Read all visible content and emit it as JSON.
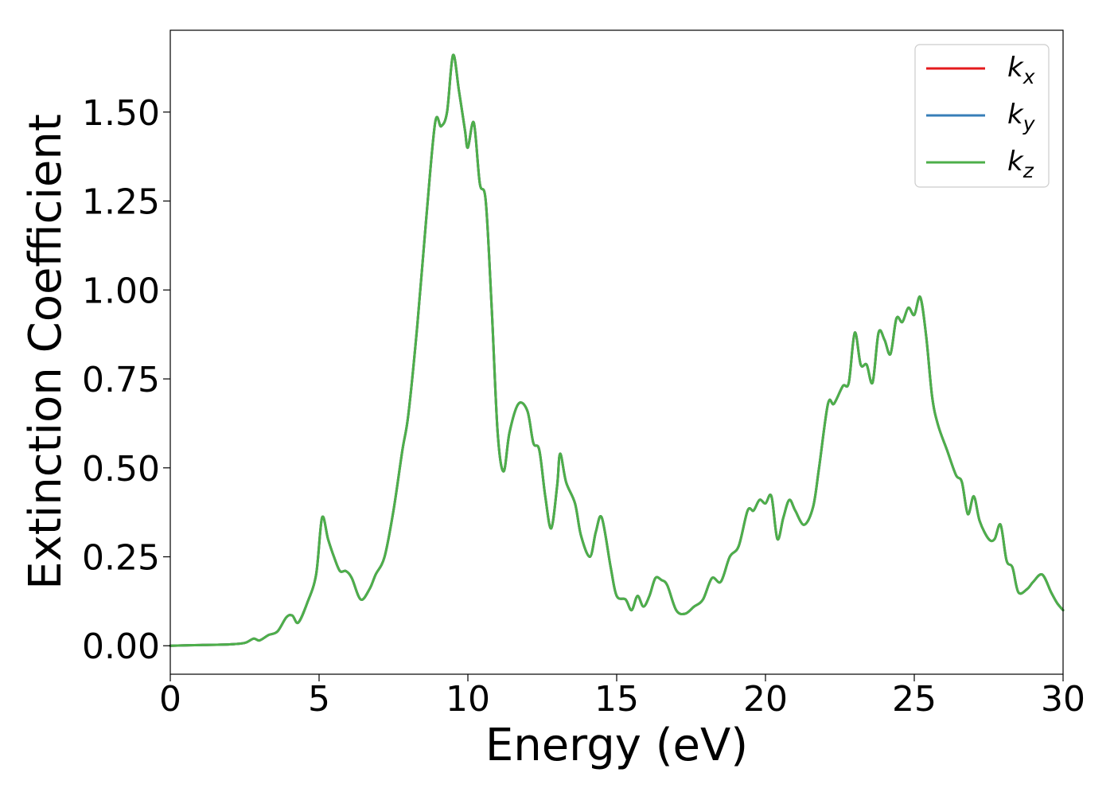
{
  "chart_data": {
    "type": "line",
    "xlabel": "Energy (eV)",
    "ylabel": "Extinction Coefficient",
    "xlim": [
      0,
      30
    ],
    "ylim": [
      -0.08,
      1.73
    ],
    "xticks": [
      0,
      5,
      10,
      15,
      20,
      25,
      30
    ],
    "xtick_labels": [
      "0",
      "5",
      "10",
      "15",
      "20",
      "25",
      "30"
    ],
    "yticks": [
      0,
      0.25,
      0.5,
      0.75,
      1.0,
      1.25,
      1.5
    ],
    "ytick_labels": [
      "0.00",
      "0.25",
      "0.50",
      "0.75",
      "1.00",
      "1.25",
      "1.50"
    ],
    "grid": false,
    "legend_position": "top-right",
    "x": [
      0,
      1,
      2,
      2.5,
      2.8,
      3.0,
      3.3,
      3.6,
      3.9,
      4.1,
      4.3,
      4.6,
      4.9,
      5.1,
      5.3,
      5.5,
      5.7,
      5.9,
      6.1,
      6.4,
      6.7,
      6.9,
      7.2,
      7.5,
      7.8,
      8.0,
      8.3,
      8.6,
      8.9,
      9.1,
      9.3,
      9.5,
      9.7,
      9.9,
      10.0,
      10.2,
      10.4,
      10.6,
      10.8,
      11.0,
      11.2,
      11.4,
      11.7,
      12.0,
      12.2,
      12.4,
      12.6,
      12.8,
      13.0,
      13.1,
      13.3,
      13.6,
      13.8,
      14.1,
      14.3,
      14.5,
      14.8,
      15.0,
      15.3,
      15.5,
      15.7,
      15.9,
      16.1,
      16.3,
      16.5,
      16.7,
      17.0,
      17.3,
      17.6,
      17.9,
      18.2,
      18.5,
      18.8,
      19.1,
      19.4,
      19.6,
      19.8,
      20.0,
      20.2,
      20.4,
      20.6,
      20.8,
      21.0,
      21.3,
      21.6,
      21.8,
      22.1,
      22.3,
      22.6,
      22.8,
      23.0,
      23.2,
      23.4,
      23.6,
      23.8,
      24.0,
      24.2,
      24.4,
      24.6,
      24.8,
      25.0,
      25.2,
      25.4,
      25.6,
      25.8,
      26.1,
      26.4,
      26.6,
      26.8,
      27.0,
      27.2,
      27.5,
      27.7,
      27.9,
      28.1,
      28.3,
      28.5,
      28.8,
      29.0,
      29.3,
      29.6,
      29.8,
      30.0
    ],
    "series": [
      {
        "name": "k_x",
        "color": "#e41a1c",
        "y": [
          0.0,
          0.002,
          0.004,
          0.008,
          0.02,
          0.015,
          0.03,
          0.04,
          0.08,
          0.085,
          0.065,
          0.12,
          0.2,
          0.36,
          0.3,
          0.25,
          0.21,
          0.21,
          0.19,
          0.13,
          0.16,
          0.2,
          0.25,
          0.38,
          0.55,
          0.65,
          0.9,
          1.2,
          1.47,
          1.46,
          1.5,
          1.66,
          1.56,
          1.45,
          1.4,
          1.47,
          1.3,
          1.25,
          0.95,
          0.6,
          0.49,
          0.6,
          0.68,
          0.66,
          0.57,
          0.55,
          0.42,
          0.33,
          0.45,
          0.54,
          0.46,
          0.4,
          0.31,
          0.25,
          0.32,
          0.36,
          0.22,
          0.14,
          0.13,
          0.1,
          0.14,
          0.11,
          0.14,
          0.19,
          0.185,
          0.17,
          0.1,
          0.09,
          0.11,
          0.13,
          0.19,
          0.18,
          0.25,
          0.28,
          0.38,
          0.38,
          0.41,
          0.4,
          0.42,
          0.3,
          0.36,
          0.41,
          0.38,
          0.34,
          0.39,
          0.5,
          0.68,
          0.68,
          0.73,
          0.74,
          0.88,
          0.79,
          0.79,
          0.74,
          0.88,
          0.86,
          0.82,
          0.92,
          0.91,
          0.95,
          0.93,
          0.98,
          0.87,
          0.7,
          0.62,
          0.55,
          0.48,
          0.46,
          0.37,
          0.42,
          0.35,
          0.3,
          0.3,
          0.34,
          0.24,
          0.22,
          0.15,
          0.16,
          0.18,
          0.2,
          0.15,
          0.12,
          0.1
        ]
      },
      {
        "name": "k_y",
        "color": "#377eb8",
        "y": [
          0.0,
          0.002,
          0.004,
          0.008,
          0.02,
          0.015,
          0.03,
          0.04,
          0.08,
          0.085,
          0.065,
          0.12,
          0.2,
          0.36,
          0.3,
          0.25,
          0.21,
          0.21,
          0.19,
          0.13,
          0.16,
          0.2,
          0.25,
          0.38,
          0.55,
          0.65,
          0.9,
          1.2,
          1.47,
          1.46,
          1.5,
          1.66,
          1.56,
          1.45,
          1.4,
          1.47,
          1.3,
          1.25,
          0.95,
          0.6,
          0.49,
          0.6,
          0.68,
          0.66,
          0.57,
          0.55,
          0.42,
          0.33,
          0.45,
          0.54,
          0.46,
          0.4,
          0.31,
          0.25,
          0.32,
          0.36,
          0.22,
          0.14,
          0.13,
          0.1,
          0.14,
          0.11,
          0.14,
          0.19,
          0.185,
          0.17,
          0.1,
          0.09,
          0.11,
          0.13,
          0.19,
          0.18,
          0.25,
          0.28,
          0.38,
          0.38,
          0.41,
          0.4,
          0.42,
          0.3,
          0.36,
          0.41,
          0.38,
          0.34,
          0.39,
          0.5,
          0.68,
          0.68,
          0.73,
          0.74,
          0.88,
          0.79,
          0.79,
          0.74,
          0.88,
          0.86,
          0.82,
          0.92,
          0.91,
          0.95,
          0.93,
          0.98,
          0.87,
          0.7,
          0.62,
          0.55,
          0.48,
          0.46,
          0.37,
          0.42,
          0.35,
          0.3,
          0.3,
          0.34,
          0.24,
          0.22,
          0.15,
          0.16,
          0.18,
          0.2,
          0.15,
          0.12,
          0.1
        ]
      },
      {
        "name": "k_z",
        "color": "#4daf4a",
        "y": [
          0.0,
          0.002,
          0.004,
          0.008,
          0.02,
          0.015,
          0.03,
          0.04,
          0.08,
          0.085,
          0.065,
          0.12,
          0.2,
          0.36,
          0.3,
          0.25,
          0.21,
          0.21,
          0.19,
          0.13,
          0.16,
          0.2,
          0.25,
          0.38,
          0.55,
          0.65,
          0.9,
          1.2,
          1.47,
          1.46,
          1.5,
          1.66,
          1.56,
          1.45,
          1.4,
          1.47,
          1.3,
          1.25,
          0.95,
          0.6,
          0.49,
          0.6,
          0.68,
          0.66,
          0.57,
          0.55,
          0.42,
          0.33,
          0.45,
          0.54,
          0.46,
          0.4,
          0.31,
          0.25,
          0.32,
          0.36,
          0.22,
          0.14,
          0.13,
          0.1,
          0.14,
          0.11,
          0.14,
          0.19,
          0.185,
          0.17,
          0.1,
          0.09,
          0.11,
          0.13,
          0.19,
          0.18,
          0.25,
          0.28,
          0.38,
          0.38,
          0.41,
          0.4,
          0.42,
          0.3,
          0.36,
          0.41,
          0.38,
          0.34,
          0.39,
          0.5,
          0.68,
          0.68,
          0.73,
          0.74,
          0.88,
          0.79,
          0.79,
          0.74,
          0.88,
          0.86,
          0.82,
          0.92,
          0.91,
          0.95,
          0.93,
          0.98,
          0.87,
          0.7,
          0.62,
          0.55,
          0.48,
          0.46,
          0.37,
          0.42,
          0.35,
          0.3,
          0.3,
          0.34,
          0.24,
          0.22,
          0.15,
          0.16,
          0.18,
          0.2,
          0.15,
          0.12,
          0.1
        ]
      }
    ],
    "legend": [
      {
        "base": "k",
        "sub": "x",
        "color": "#e41a1c"
      },
      {
        "base": "k",
        "sub": "y",
        "color": "#377eb8"
      },
      {
        "base": "k",
        "sub": "z",
        "color": "#4daf4a"
      }
    ]
  }
}
